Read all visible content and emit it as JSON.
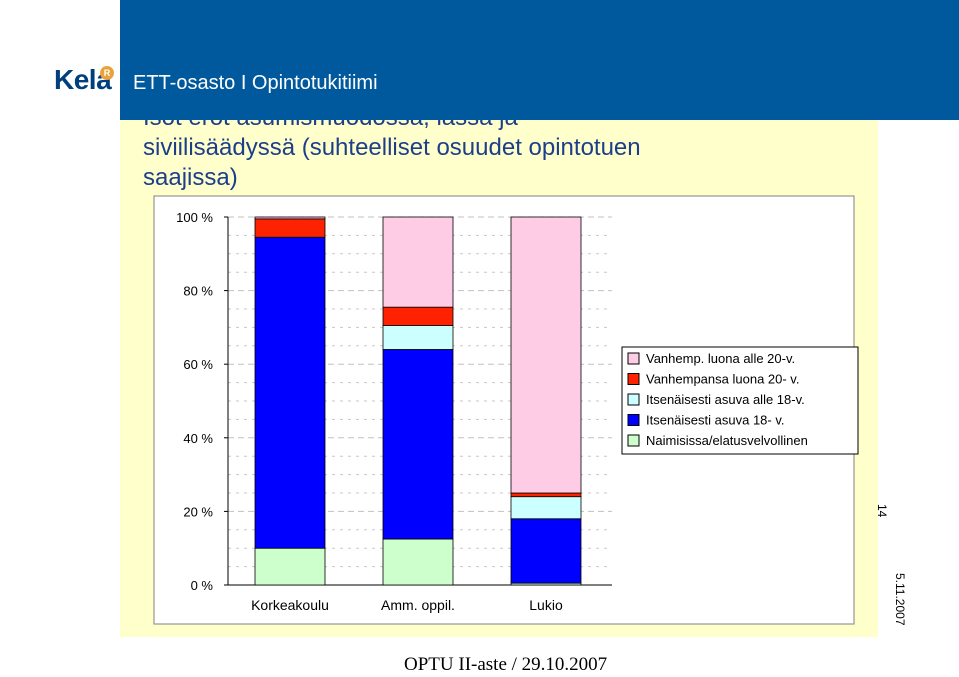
{
  "header": {
    "org_logo": "Kela",
    "unit": "ETT-osasto I Opintotukitiimi"
  },
  "slide": {
    "title_line1": "Isot erot asumismuodossa, iässä ja",
    "title_line2": "siviilisäädyssä (suhteelliset osuudet opintotuen",
    "title_line3": "saajissa)",
    "page_number": "14",
    "date": "5.11.2007",
    "footer": "OPTU II-aste / 29.10.2007"
  },
  "colors": {
    "header_blue": "#00599c",
    "slide_bg": "#ffffcc",
    "plot_bg": "#ffffff"
  },
  "chart_data": {
    "type": "bar",
    "stacked": true,
    "categories": [
      "Korkeakoulu",
      "Amm. oppil.",
      "Lukio"
    ],
    "ylim": [
      0,
      100
    ],
    "yticks": [
      "0 %",
      "20 %",
      "40 %",
      "60 %",
      "80 %",
      "100 %"
    ],
    "grid": true,
    "legend_position": "right",
    "series": [
      {
        "name": "Naimisissa/elatusvelvollinen",
        "values": [
          10,
          12.5,
          0.5
        ],
        "color": "#ccffcc"
      },
      {
        "name": "Itsenäisesti asuva 18- v.",
        "values": [
          84.5,
          51.5,
          17.5
        ],
        "color": "#0000ff"
      },
      {
        "name": "Itsenäisesti asuva alle 18-v.",
        "values": [
          0,
          6.5,
          6
        ],
        "color": "#ccffff"
      },
      {
        "name": "Vanhempansa luona 20- v.",
        "values": [
          5,
          5,
          1
        ],
        "color": "#ff2200"
      },
      {
        "name": "Vanhemp. luona alle 20-v.",
        "values": [
          0.5,
          24.5,
          75
        ],
        "color": "#ffcce6"
      }
    ],
    "legend_order": [
      "Vanhemp. luona alle 20-v.",
      "Vanhempansa luona 20- v.",
      "Itsenäisesti asuva alle 18-v.",
      "Itsenäisesti asuva 18- v.",
      "Naimisissa/elatusvelvollinen"
    ]
  }
}
